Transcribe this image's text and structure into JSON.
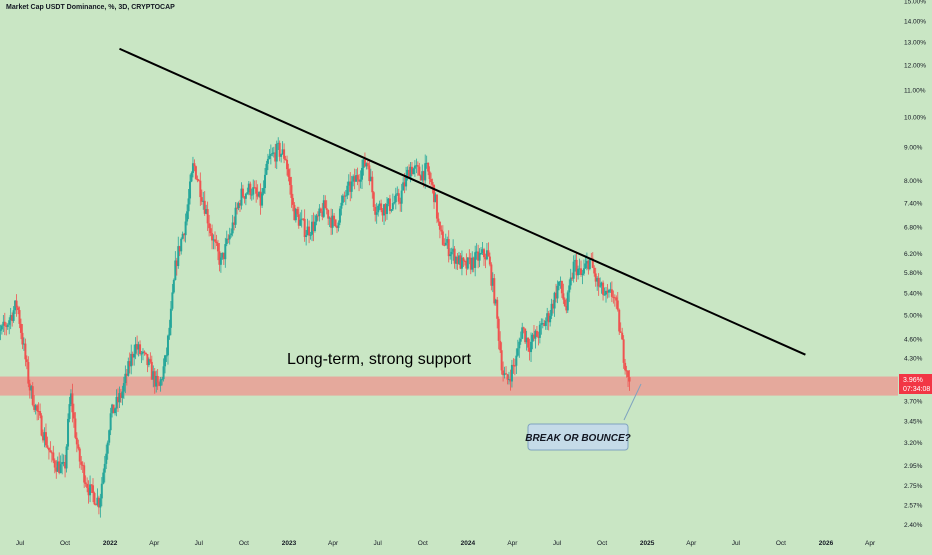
{
  "header": {
    "title": "Market Cap USDT Dominance, %, 3D, CRYPTOCAP"
  },
  "price_badge": {
    "value": "3.96%",
    "countdown": "07:34:08"
  },
  "annotations": {
    "support_label": "Long-term, strong support",
    "callout": "BREAK OR BOUNCE?"
  },
  "colors": {
    "background": "#c9e6c4",
    "up_candle": "#26a69a",
    "down_candle": "#ef5350",
    "support_zone": "#e8a298",
    "trendline": "#000000",
    "callout_fill": "#c5dbe8",
    "callout_border": "#7fa3bf",
    "badge": "#f23645"
  },
  "chart_data": {
    "type": "candlestick",
    "title": "Market Cap USDT Dominance, %, 3D, CRYPTOCAP",
    "y_scale": "log",
    "ylim": [
      2.3,
      15.1
    ],
    "y_ticks": [
      "15.00%",
      "14.00%",
      "13.00%",
      "12.00%",
      "11.00%",
      "10.00%",
      "9.00%",
      "8.00%",
      "7.40%",
      "6.80%",
      "6.20%",
      "5.80%",
      "5.40%",
      "5.00%",
      "4.60%",
      "4.30%",
      "3.70%",
      "3.45%",
      "3.20%",
      "2.95%",
      "2.75%",
      "2.57%",
      "2.40%"
    ],
    "x_ticks": [
      "Jul",
      "Oct",
      "2022",
      "Apr",
      "Jul",
      "Oct",
      "2023",
      "Apr",
      "Jul",
      "Oct",
      "2024",
      "Apr",
      "Jul",
      "Oct",
      "2025",
      "Apr",
      "Jul",
      "Oct",
      "2026",
      "Apr"
    ],
    "xlim": [
      "2021-05-01",
      "2026-06-01"
    ],
    "last_value": 3.96,
    "price_path": [
      [
        "2021-05-01",
        4.5
      ],
      [
        "2021-06-01",
        4.8
      ],
      [
        "2021-06-25",
        5.2
      ],
      [
        "2021-07-20",
        3.9
      ],
      [
        "2021-08-10",
        3.45
      ],
      [
        "2021-09-05",
        3.0
      ],
      [
        "2021-09-30",
        2.9
      ],
      [
        "2021-10-12",
        3.8
      ],
      [
        "2021-10-28",
        3.05
      ],
      [
        "2021-11-20",
        2.7
      ],
      [
        "2021-12-10",
        2.6
      ],
      [
        "2022-01-01",
        3.5
      ],
      [
        "2022-01-25",
        3.8
      ],
      [
        "2022-02-20",
        4.5
      ],
      [
        "2022-03-20",
        4.2
      ],
      [
        "2022-04-10",
        3.85
      ],
      [
        "2022-04-25",
        4.3
      ],
      [
        "2022-05-05",
        5.0
      ],
      [
        "2022-05-15",
        6.0
      ],
      [
        "2022-06-05",
        7.0
      ],
      [
        "2022-06-20",
        8.5
      ],
      [
        "2022-07-10",
        7.5
      ],
      [
        "2022-08-01",
        6.4
      ],
      [
        "2022-08-15",
        6.0
      ],
      [
        "2022-09-05",
        6.7
      ],
      [
        "2022-09-25",
        7.6
      ],
      [
        "2022-10-15",
        7.8
      ],
      [
        "2022-11-05",
        7.4
      ],
      [
        "2022-11-20",
        8.6
      ],
      [
        "2022-12-10",
        8.9
      ],
      [
        "2022-12-25",
        8.7
      ],
      [
        "2023-01-10",
        7.2
      ],
      [
        "2023-02-05",
        6.7
      ],
      [
        "2023-02-25",
        6.9
      ],
      [
        "2023-03-15",
        7.3
      ],
      [
        "2023-04-05",
        6.8
      ],
      [
        "2023-04-25",
        7.6
      ],
      [
        "2023-05-15",
        8.0
      ],
      [
        "2023-06-10",
        8.6
      ],
      [
        "2023-06-25",
        7.3
      ],
      [
        "2023-07-20",
        7.3
      ],
      [
        "2023-08-15",
        7.5
      ],
      [
        "2023-09-05",
        8.4
      ],
      [
        "2023-09-25",
        8.2
      ],
      [
        "2023-10-10",
        8.3
      ],
      [
        "2023-10-25",
        7.6
      ],
      [
        "2023-11-05",
        6.6
      ],
      [
        "2023-12-01",
        6.2
      ],
      [
        "2023-12-25",
        5.9
      ],
      [
        "2024-01-20",
        6.1
      ],
      [
        "2024-02-10",
        6.2
      ],
      [
        "2024-02-25",
        5.3
      ],
      [
        "2024-03-12",
        4.1
      ],
      [
        "2024-03-20",
        3.95
      ],
      [
        "2024-04-10",
        4.3
      ],
      [
        "2024-04-20",
        4.8
      ],
      [
        "2024-05-05",
        4.5
      ],
      [
        "2024-05-25",
        4.7
      ],
      [
        "2024-06-15",
        5.0
      ],
      [
        "2024-07-05",
        5.6
      ],
      [
        "2024-07-20",
        5.1
      ],
      [
        "2024-08-05",
        6.0
      ],
      [
        "2024-08-20",
        5.7
      ],
      [
        "2024-09-05",
        6.1
      ],
      [
        "2024-09-20",
        5.6
      ],
      [
        "2024-10-10",
        5.3
      ],
      [
        "2024-10-25",
        5.4
      ],
      [
        "2024-11-05",
        4.8
      ],
      [
        "2024-11-15",
        4.3
      ],
      [
        "2024-11-28",
        3.96
      ]
    ],
    "series": [
      {
        "type": "trendline",
        "points": [
          [
            "2022-01-20",
            12.7
          ],
          [
            "2025-11-20",
            4.35
          ]
        ]
      },
      {
        "type": "zone",
        "x_from": "2021-05-01",
        "x_to": "2026-06-01",
        "y_from": 3.77,
        "y_to": 4.03
      }
    ]
  }
}
